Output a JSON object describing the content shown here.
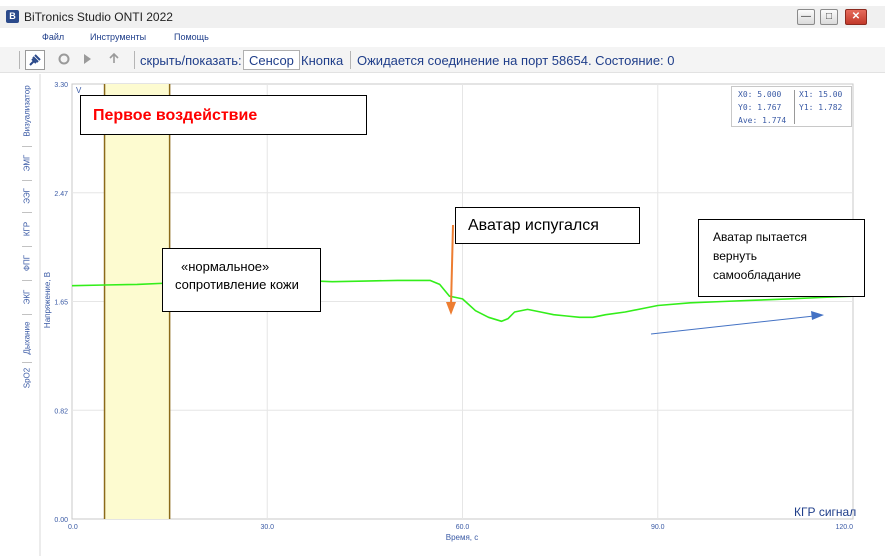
{
  "window": {
    "app_icon": "B",
    "title": "BiTronics Studio ONTI 2022",
    "minimize_glyph": "—",
    "maximize_glyph": "□",
    "close_glyph": "✕"
  },
  "menu": {
    "items": [
      "Файл",
      "Инструменты",
      "Помощь"
    ]
  },
  "toolbar": {
    "connect_icon": "plug-icon",
    "record_icon": "record-icon",
    "play_icon": "play-icon",
    "upload_icon": "upload-icon",
    "toggle_label": "скрыть/показать:",
    "sensor_button": "Сенсор",
    "button_label": "Кнопка",
    "status_text": "Ожидается соединение на порт 58654. Состояние: 0"
  },
  "sidebar": {
    "tabs": [
      "Визуализатор",
      "ЭМГ",
      "ЭЭГ",
      "КГР",
      "ФПГ",
      "ЭКГ",
      "Дыхание",
      "SpO2"
    ]
  },
  "readout": {
    "x0": "X0:   5.000",
    "x1": "X1:   15.00",
    "y0": "Y0:   1.767",
    "y1": "Y1:   1.782",
    "ave": "Ave:   1.774"
  },
  "annotations": {
    "first_impact": "Первое воздействие",
    "normal_line1": "«нормальное»",
    "normal_line2": "сопротивление кожи",
    "scared": "Аватар испугался",
    "recover_line1": "Аватар пытается",
    "recover_line2": "вернуть",
    "recover_line3": "самообладание"
  },
  "signal_label": "КГР сигнал",
  "colors": {
    "signal": "#33ee1a",
    "cursor_line": "#8b6a1a",
    "cursor_fill": "#fdfbd0",
    "scared_arrow": "#ed7d31",
    "recover_arrow": "#4472c4",
    "title_red": "#ff0000",
    "axis_text": "#3a5aa5"
  },
  "chart_data": {
    "type": "line",
    "ylabel": "Напряжение, В",
    "xlabel": "Время, с",
    "y_unit_marker": "V",
    "xlim": [
      0,
      120
    ],
    "ylim": [
      0,
      3.3
    ],
    "x_ticks": [
      "0.0",
      "30.0",
      "60.0",
      "90.0",
      "120.0"
    ],
    "x_tick_values": [
      0,
      30,
      60,
      90,
      120
    ],
    "y_ticks": [
      "0.00",
      "0.82",
      "1.65",
      "2.47",
      "3.30"
    ],
    "y_tick_values": [
      0,
      0.825,
      1.65,
      2.475,
      3.3
    ],
    "cursors": [
      5,
      15
    ],
    "series": [
      {
        "x": [
          0,
          5,
          10,
          15,
          20,
          25,
          30,
          35,
          40,
          45,
          50,
          55,
          56.5,
          58,
          59,
          60,
          62,
          64,
          66,
          67,
          68,
          70,
          72,
          74,
          76,
          78,
          80,
          82,
          85,
          88,
          90,
          95,
          100,
          105,
          110,
          115,
          120
        ],
        "y": [
          1.77,
          1.775,
          1.78,
          1.79,
          1.795,
          1.8,
          1.8,
          1.81,
          1.8,
          1.805,
          1.81,
          1.81,
          1.78,
          1.69,
          1.68,
          1.67,
          1.58,
          1.53,
          1.5,
          1.52,
          1.57,
          1.59,
          1.57,
          1.55,
          1.54,
          1.53,
          1.53,
          1.55,
          1.57,
          1.6,
          1.62,
          1.64,
          1.65,
          1.66,
          1.67,
          1.68,
          1.69
        ]
      }
    ]
  }
}
